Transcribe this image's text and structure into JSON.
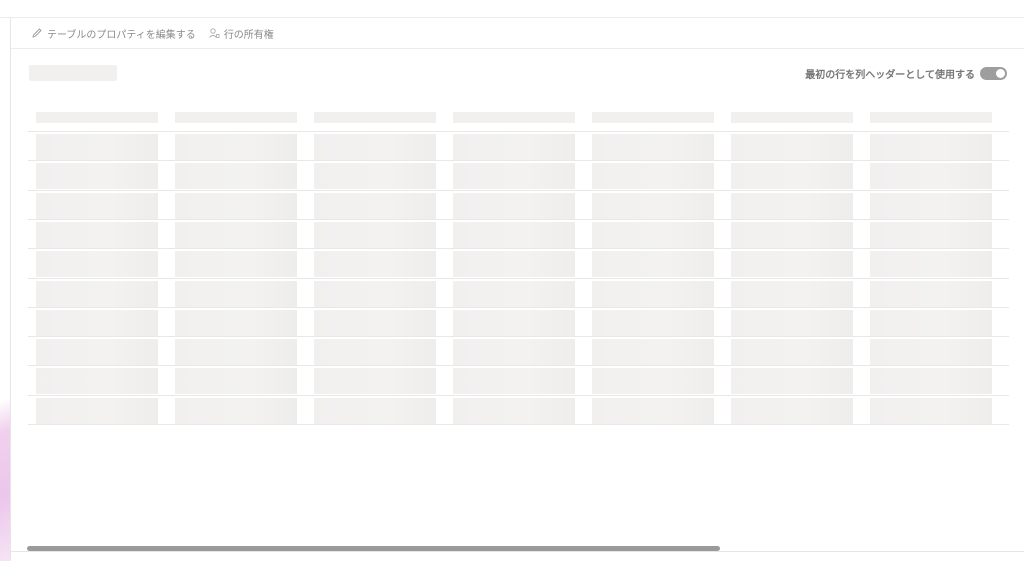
{
  "toolbar": {
    "edit_table_properties": {
      "label": "テーブルのプロパティを編集する",
      "icon": "pencil-icon"
    },
    "row_ownership": {
      "label": "行の所有権",
      "icon": "person-icon"
    }
  },
  "table": {
    "first_row_as_header_label": "最初の行を列ヘッダーとして使用する",
    "first_row_as_header_enabled": true,
    "loading": true
  },
  "colors": {
    "toggle": "#9e9e9e",
    "skeleton": "#f1f0ef",
    "scrollbar": "#9a9a9a",
    "accent_gradient": "#ecc6ec"
  }
}
